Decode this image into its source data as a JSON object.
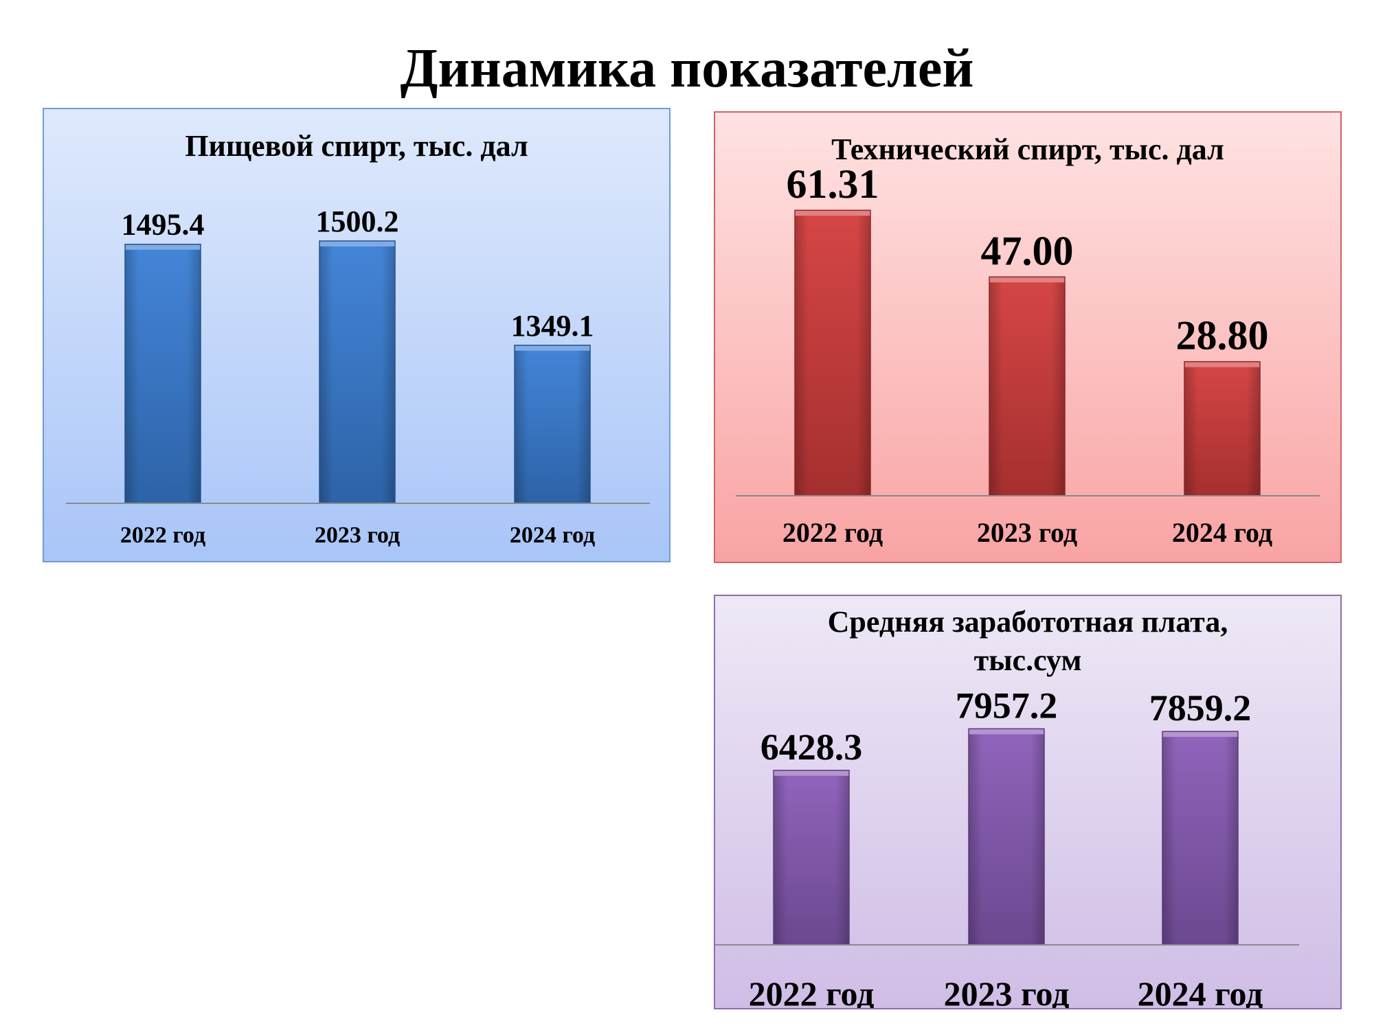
{
  "page": {
    "title": "Динамика показателей"
  },
  "colors": {
    "panel1_bg_top": "#dfe9fc",
    "panel1_bg_bottom": "#a8c5f8",
    "panel2_bg_top": "#ffe2e2",
    "panel2_bg_bottom": "#f9a3a3",
    "panel3_bg_top": "#eee8f6",
    "panel3_bg_bottom": "#cfbde6",
    "bar1": "#3a7fd6",
    "bar2": "#d43c3c",
    "bar3": "#8a5cb8"
  },
  "chart_data": [
    {
      "type": "bar",
      "title": "Пищевой спирт, тыс. дал",
      "categories": [
        "2022 год",
        "2023 год",
        "2024 год"
      ],
      "values": [
        1495.4,
        1500.2,
        1349.1
      ],
      "value_labels": [
        "1495.4",
        "1500.2",
        "1349.1"
      ],
      "ylim": [
        1120,
        1520
      ],
      "grid": false,
      "legend": "none"
    },
    {
      "type": "bar",
      "title": "Технический спирт, тыс. дал",
      "categories": [
        "2022 год",
        "2023 год",
        "2024 год"
      ],
      "values": [
        61.31,
        47.0,
        28.8
      ],
      "value_labels": [
        "61.31",
        "47.00",
        "28.80"
      ],
      "ylim": [
        0,
        64
      ],
      "grid": false,
      "legend": "none"
    },
    {
      "type": "bar",
      "title": "Средняя заработотная плата, тыс.сум",
      "title_lines": [
        "Средняя заработотная плата,",
        "тыс.сум"
      ],
      "categories": [
        "2022 год",
        "2023 год",
        "2024 год"
      ],
      "values": [
        6428.3,
        7957.2,
        7859.2
      ],
      "value_labels": [
        "6428.3",
        "7957.2",
        "7859.2"
      ],
      "ylim": [
        0,
        8800
      ],
      "grid": false,
      "legend": "none"
    }
  ]
}
